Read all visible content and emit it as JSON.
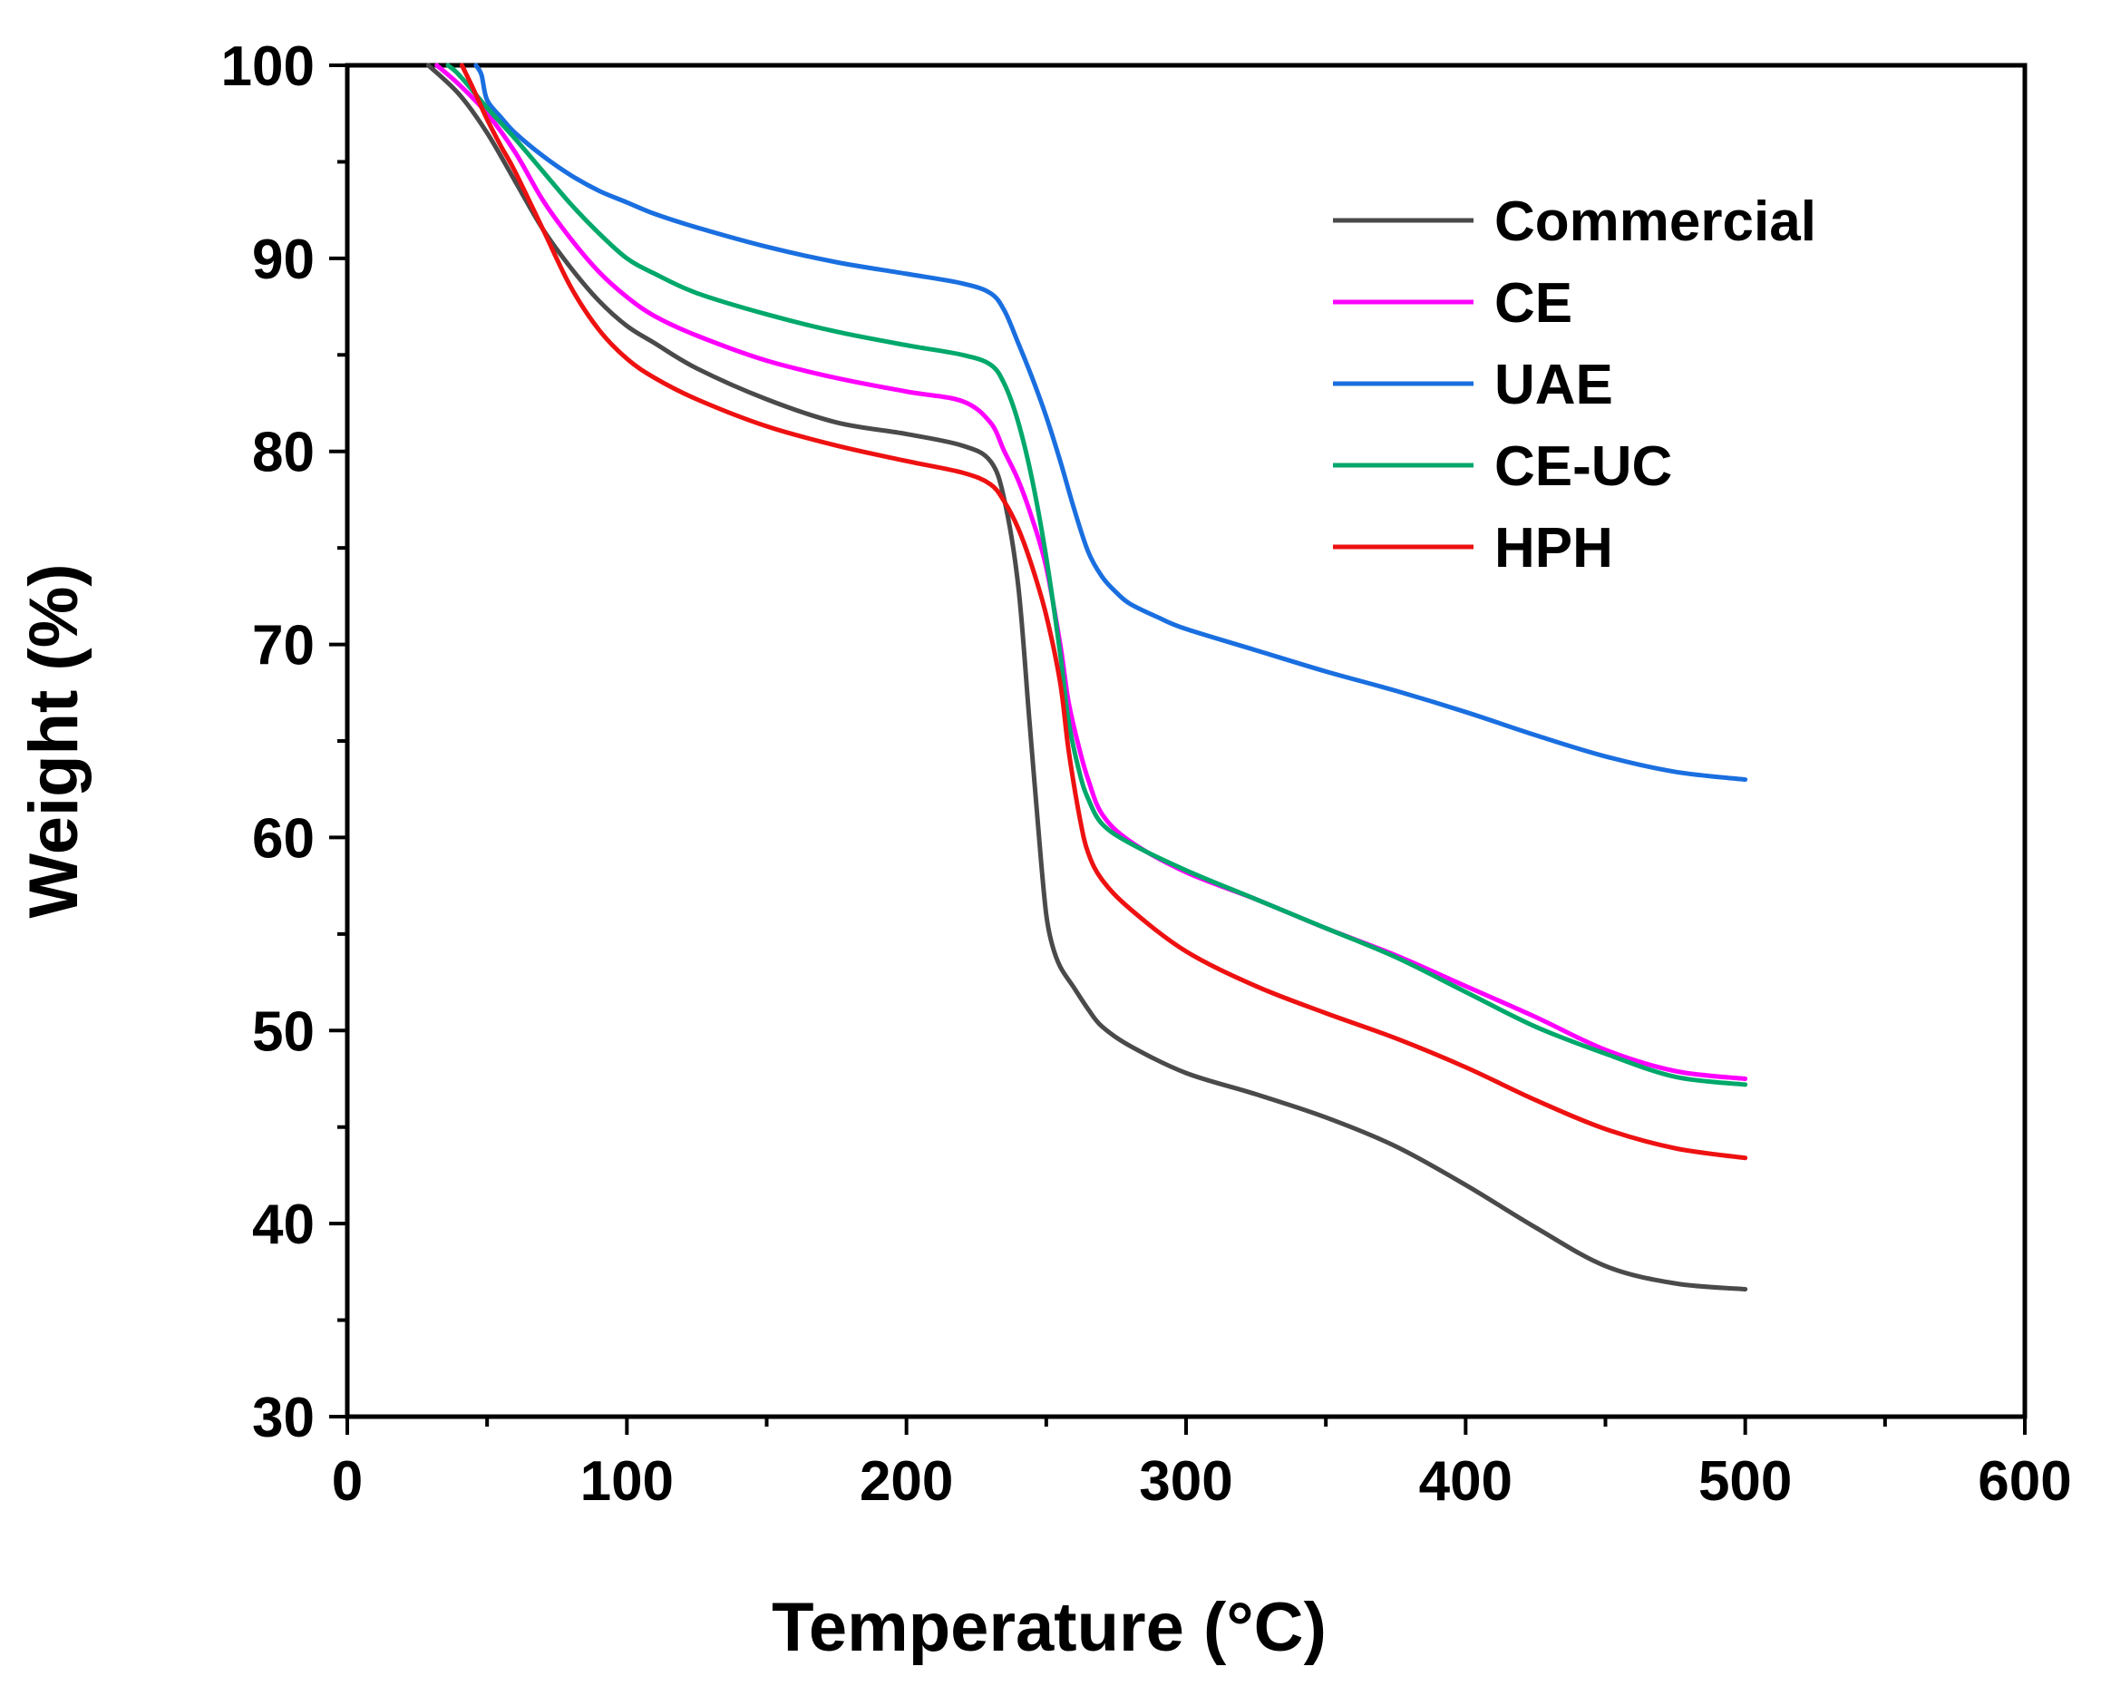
{
  "chart_data": {
    "type": "line",
    "title": "",
    "xlabel": "Temperature (°C)",
    "ylabel": "Weight (%)",
    "xlim": [
      0,
      600
    ],
    "ylim": [
      30,
      100
    ],
    "xticks": [
      0,
      100,
      200,
      300,
      400,
      500,
      600
    ],
    "yticks": [
      30,
      40,
      50,
      60,
      70,
      80,
      90,
      100
    ],
    "x_minor_step": 50,
    "y_minor_step": 5,
    "grid": false,
    "legend_position": "top-right",
    "series": [
      {
        "name": "Commercial",
        "color": "#4a4a4a",
        "x": [
          29,
          40,
          50,
          60,
          70,
          80,
          90,
          100,
          110,
          125,
          150,
          175,
          200,
          220,
          230,
          235,
          240,
          244,
          248,
          250,
          252,
          255,
          260,
          265,
          270,
          280,
          300,
          325,
          350,
          375,
          400,
          425,
          450,
          475,
          500
        ],
        "y": [
          100,
          98.5,
          96.5,
          94,
          91.5,
          89.5,
          87.8,
          86.5,
          85.6,
          84.3,
          82.7,
          81.5,
          80.9,
          80.3,
          79.5,
          77.5,
          73,
          66,
          59,
          56,
          54.5,
          53.3,
          52.2,
          51.1,
          50.2,
          49.2,
          47.8,
          46.7,
          45.5,
          44,
          42,
          39.8,
          37.8,
          36.9,
          36.6
        ]
      },
      {
        "name": "CE",
        "color": "#ff00ff",
        "x": [
          32,
          40,
          50,
          60,
          70,
          80,
          90,
          100,
          110,
          125,
          150,
          175,
          200,
          220,
          230,
          235,
          240,
          245,
          250,
          255,
          258,
          262,
          265,
          270,
          280,
          300,
          325,
          350,
          375,
          400,
          425,
          450,
          475,
          500
        ],
        "y": [
          100,
          99,
          97.5,
          95.5,
          93,
          91,
          89.3,
          88,
          87,
          86,
          84.7,
          83.8,
          83.1,
          82.6,
          81.5,
          80,
          78.5,
          76.5,
          74,
          70,
          67,
          64.5,
          63,
          61.2,
          59.8,
          58.2,
          56.8,
          55.3,
          53.9,
          52.3,
          50.7,
          49,
          47.9,
          47.5
        ]
      },
      {
        "name": "UAE",
        "color": "#1a6fe0",
        "x": [
          46,
          48,
          50,
          55,
          60,
          70,
          80,
          90,
          100,
          110,
          125,
          150,
          175,
          200,
          220,
          230,
          235,
          240,
          245,
          250,
          255,
          260,
          265,
          270,
          275,
          280,
          290,
          300,
          325,
          350,
          375,
          400,
          425,
          450,
          475,
          500
        ],
        "y": [
          100,
          99.5,
          98.2,
          97.3,
          96.5,
          95.3,
          94.3,
          93.5,
          92.9,
          92.3,
          91.6,
          90.6,
          89.8,
          89.2,
          88.7,
          88.2,
          87.3,
          85.6,
          83.8,
          81.8,
          79.5,
          77,
          74.8,
          73.5,
          72.7,
          72.1,
          71.4,
          70.8,
          69.7,
          68.6,
          67.6,
          66.5,
          65.3,
          64.2,
          63.4,
          63
        ]
      },
      {
        "name": "CE-UC",
        "color": "#00a86b",
        "x": [
          36,
          40,
          50,
          60,
          70,
          80,
          90,
          100,
          110,
          125,
          150,
          175,
          200,
          220,
          230,
          235,
          240,
          245,
          250,
          255,
          258,
          262,
          265,
          270,
          280,
          300,
          325,
          350,
          375,
          400,
          425,
          450,
          475,
          500
        ],
        "y": [
          100,
          99.5,
          97.8,
          96.2,
          94.5,
          92.8,
          91.3,
          90,
          89.2,
          88.2,
          87.1,
          86.2,
          85.5,
          85,
          84.5,
          83.5,
          81.5,
          78.5,
          74.5,
          69.5,
          66,
          63.3,
          62,
          60.7,
          59.7,
          58.3,
          56.8,
          55.3,
          53.8,
          52,
          50.2,
          48.8,
          47.6,
          47.2
        ]
      },
      {
        "name": "HPH",
        "color": "#ee1111",
        "x": [
          41,
          45,
          50,
          55,
          60,
          70,
          80,
          90,
          100,
          110,
          125,
          150,
          175,
          200,
          220,
          230,
          235,
          240,
          245,
          250,
          255,
          258,
          262,
          265,
          270,
          280,
          300,
          325,
          350,
          375,
          400,
          425,
          450,
          475,
          500
        ],
        "y": [
          100,
          98.8,
          97.2,
          95.8,
          94.5,
          91.5,
          88.5,
          86.3,
          84.8,
          83.8,
          82.7,
          81.3,
          80.3,
          79.5,
          78.9,
          78.3,
          77.4,
          76,
          74,
          71.5,
          68,
          64.5,
          61,
          59.2,
          57.8,
          56.3,
          54.1,
          52.3,
          50.9,
          49.6,
          48.1,
          46.4,
          44.9,
          43.9,
          43.4
        ]
      }
    ]
  }
}
